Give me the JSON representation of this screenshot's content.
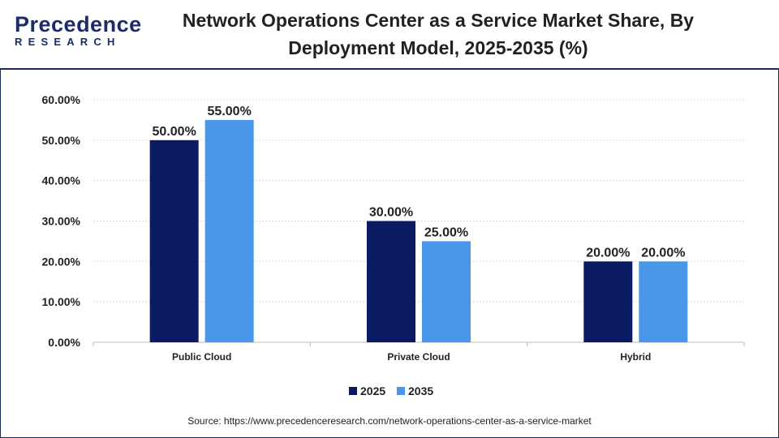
{
  "header": {
    "logo_main": "Precedence",
    "logo_sub": "RESEARCH",
    "title_line1": "Network Operations Center as a Service Market Share, By",
    "title_line2": "Deployment Model, 2025-2035 (%)"
  },
  "source": "Source: https://www.precedenceresearch.com/network-operations-center-as-a-service-market",
  "chart_data": {
    "type": "bar",
    "title": "Network Operations Center as a Service Market Share, By Deployment Model, 2025-2035 (%)",
    "categories": [
      "Public Cloud",
      "Private Cloud",
      "Hybrid"
    ],
    "series": [
      {
        "name": "2025",
        "values": [
          50,
          30,
          20
        ],
        "labels": [
          "50.00%",
          "30.00%",
          "20.00%"
        ],
        "color": "#0b1b63"
      },
      {
        "name": "2035",
        "values": [
          55,
          25,
          20
        ],
        "labels": [
          "55.00%",
          "25.00%",
          "20.00%"
        ],
        "color": "#4a96ea"
      }
    ],
    "ylim": [
      0,
      60
    ],
    "yticks": [
      0,
      10,
      20,
      30,
      40,
      50,
      60
    ],
    "ytick_labels": [
      "0.00%",
      "10.00%",
      "20.00%",
      "30.00%",
      "40.00%",
      "50.00%",
      "60.00%"
    ],
    "xlabel": "",
    "ylabel": "",
    "grid": true,
    "legend": "bottom-center"
  }
}
